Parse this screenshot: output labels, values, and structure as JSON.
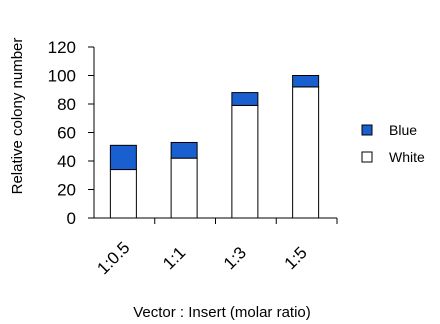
{
  "chart_data": {
    "type": "bar",
    "stacked": true,
    "categories": [
      "1:0.5",
      "1:1",
      "1:3",
      "1:5"
    ],
    "series": [
      {
        "name": "White",
        "values": [
          34,
          42,
          79,
          92
        ],
        "color": "#ffffff"
      },
      {
        "name": "Blue",
        "values": [
          17,
          11,
          9,
          8
        ],
        "color": "#1a5fd0"
      }
    ],
    "xlabel": "Vector : Insert (molar ratio)",
    "ylabel": "Relative colony number",
    "ylim": [
      0,
      120
    ],
    "yticks": [
      "0",
      "20",
      "40",
      "60",
      "80",
      "100",
      "120"
    ],
    "grid": false,
    "legend": {
      "position": "right",
      "entries": [
        "Blue",
        "White"
      ]
    }
  }
}
